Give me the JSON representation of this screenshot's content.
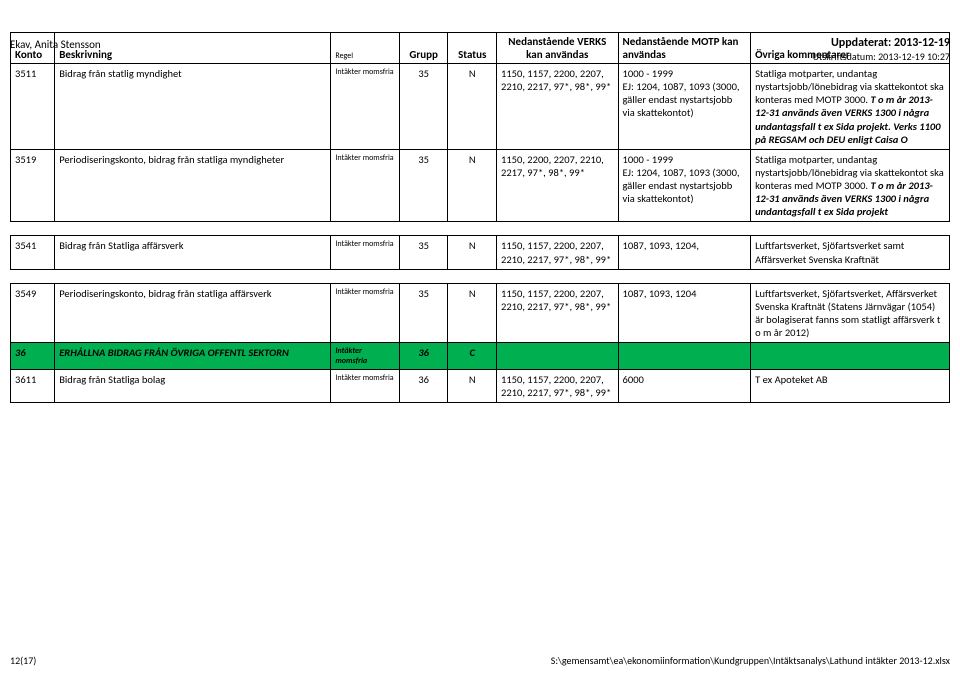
{
  "header": {
    "author": "Ekav, Anita Stensson",
    "updated_label": "Uppdaterat: 2013-12-19",
    "printed_label": "Utskriftsdatum: 2013-12-19 10:27"
  },
  "columns": {
    "konto": "Konto",
    "beskrivning": "Beskrivning",
    "regel": "Regel",
    "grupp": "Grupp",
    "status": "Status",
    "verks": "Nedanstående VERKS kan användas",
    "motp": "Nedanstående MOTP kan användas",
    "kommentarer": "Övriga kommentarer"
  },
  "rows": [
    {
      "konto": "3511",
      "beskrivning": "Bidrag från statlig myndighet",
      "regel": "Intäkter momsfria",
      "grupp": "35",
      "status": "N",
      "verks": "1150, 1157, 2200, 2207, 2210, 2217, 97*, 98*, 99*",
      "motp": "1000 - 1999\nEJ: 1204, 1087, 1093 (3000, gäller endast nystartsjobb via skattekontot)",
      "kommentarer": "Statliga motparter, undantag nystartsjobb/lönebidrag via skattekontot ska konteras med MOTP 3000. <i><b>T o m år 2013-12-31 används även VERKS 1300 i några undantagsfall t ex Sida projekt. Verks 1100 på REGSAM och DEU enligt Caisa O</b></i>"
    },
    {
      "konto": "3519",
      "beskrivning": "Periodiseringskonto, bidrag från statliga myndigheter",
      "regel": "Intäkter momsfria",
      "grupp": "35",
      "status": "N",
      "verks": "1150, 2200, 2207, 2210, 2217, 97*, 98*, 99*",
      "motp": "1000 - 1999\nEJ: 1204, 1087, 1093 (3000, gäller endast nystartsjobb via skattekontot)",
      "kommentarer": "Statliga motparter, undantag nystartsjobb/lönebidrag via skattekontot ska konteras med MOTP 3000. <i><b>T o m år 2013-12-31 används även VERKS 1300 i några undantagsfall t ex Sida projekt</b></i>"
    },
    {
      "spacer": true
    },
    {
      "konto": "3541",
      "beskrivning": "Bidrag från Statliga affärsverk",
      "regel": "Intäkter momsfria",
      "grupp": "35",
      "status": "N",
      "verks": "1150, 1157, 2200, 2207, 2210, 2217, 97*, 98*, 99*",
      "motp": "1087, 1093, 1204,",
      "kommentarer": "Luftfartsverket, Sjöfartsverket samt Affärsverket Svenska Kraftnät"
    },
    {
      "spacer": true
    },
    {
      "konto": "3549",
      "beskrivning": "Periodiseringskonto, bidrag från statliga affärsverk",
      "regel": "Intäkter momsfria",
      "grupp": "35",
      "status": "N",
      "verks": "1150, 1157, 2200, 2207, 2210, 2217, 97*, 98*, 99*",
      "motp": "1087, 1093, 1204",
      "kommentarer": "Luftfartsverket, Sjöfartsverket, Affärsverket Svenska Kraftnät (Statens Järnvägar (1054) är bolagiserat fanns som statligt affärsverk t o m år 2012)"
    },
    {
      "section": true,
      "konto": "36",
      "beskrivning": "ERHÅLLNA BIDRAG FRÅN ÖVRIGA OFFENTL SEKTORN",
      "regel": "Intäkter momsfria",
      "grupp": "36",
      "status": "C",
      "verks": "",
      "motp": "",
      "kommentarer": ""
    },
    {
      "konto": "3611",
      "beskrivning": "Bidrag från Statliga bolag",
      "regel": "Intäkter momsfria",
      "grupp": "36",
      "status": "N",
      "verks": "1150, 1157, 2200, 2207, 2210, 2217, 97*, 98*, 99*",
      "motp": "6000",
      "kommentarer": "T ex Apoteket AB"
    }
  ],
  "footer": {
    "page": "12(17)",
    "path": "S:\\gemensamt\\ea\\ekonomiinformation\\Kundgruppen\\Intäktsanalys\\Lathund intäkter 2013-12.xlsx"
  }
}
